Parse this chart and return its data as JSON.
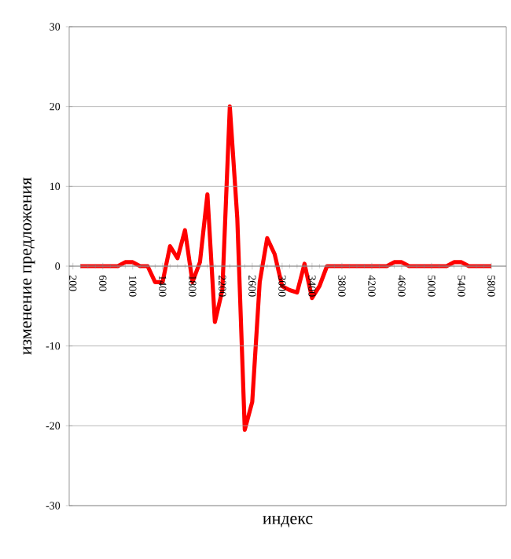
{
  "chart_data": {
    "type": "line",
    "xlabel": "индекс",
    "ylabel": "изменение предложения",
    "x": [
      300,
      400,
      500,
      600,
      700,
      800,
      900,
      1000,
      1100,
      1200,
      1300,
      1400,
      1500,
      1600,
      1700,
      1800,
      1900,
      2000,
      2100,
      2200,
      2300,
      2400,
      2500,
      2600,
      2700,
      2800,
      2900,
      3000,
      3100,
      3200,
      3300,
      3400,
      3500,
      3600,
      3700,
      3800,
      3900,
      4000,
      4100,
      4200,
      4300,
      4400,
      4500,
      4600,
      4700,
      4800,
      4900,
      5000,
      5100,
      5200,
      5300,
      5400,
      5500,
      5600,
      5700,
      5800
    ],
    "series": [
      {
        "color": "#ff0000",
        "values": [
          0,
          0,
          0,
          0,
          0,
          0,
          0.5,
          0.5,
          0,
          0,
          -2,
          -2,
          2.5,
          1,
          4.5,
          -2,
          0.5,
          9,
          -7,
          -3,
          20,
          6,
          -20.5,
          -17,
          -2,
          3.5,
          1.5,
          -2.5,
          -3,
          -3.3,
          0.3,
          -4,
          -2.5,
          0,
          0,
          0,
          0,
          0,
          0,
          0,
          0,
          0,
          0.5,
          0.5,
          0,
          0,
          0,
          0,
          0,
          0,
          0.5,
          0.5,
          0,
          0,
          0,
          0
        ]
      }
    ],
    "xlim": [
      150,
      6000
    ],
    "ylim": [
      -30,
      30
    ],
    "xticks": [
      200,
      600,
      1000,
      1400,
      1800,
      2200,
      2600,
      3000,
      3400,
      3800,
      4200,
      4600,
      5000,
      5400,
      5800
    ],
    "yticks": [
      -30,
      -20,
      -10,
      0,
      10,
      20,
      30
    ],
    "grid": "y",
    "marker": "none",
    "line_style": "solid"
  }
}
